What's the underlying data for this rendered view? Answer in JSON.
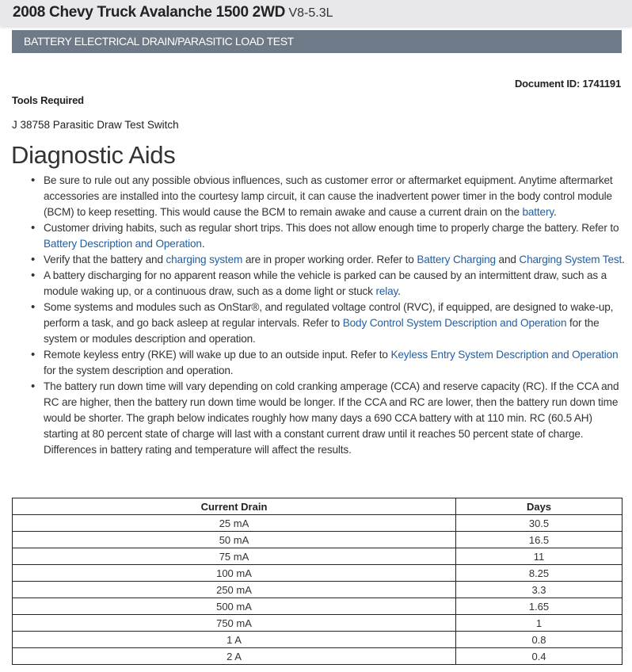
{
  "header": {
    "title": "2008 Chevy Truck Avalanche 1500 2WD",
    "engine": "V8-5.3L"
  },
  "section_title": "BATTERY ELECTRICAL DRAIN/PARASITIC LOAD TEST",
  "document_id": "Document ID: 1741191",
  "tools_heading": "Tools Required",
  "tool": "J 38758 Parasitic Draw Test Switch",
  "heading": "Diagnostic Aids",
  "bullets": [
    [
      {
        "text": "Be sure to rule out any possible obvious influences, such as customer error or aftermarket equipment. Anytime aftermarket accessories are installed into the courtesy lamp circuit, it can cause the inadvertent power timer in the body control module (BCM) to keep resetting. This would cause the BCM to remain awake and cause a current drain on the "
      },
      {
        "text": "battery",
        "link": true
      },
      {
        "text": "."
      }
    ],
    [
      {
        "text": "Customer driving habits, such as regular short trips. This does not allow enough time to properly charge the battery. Refer to "
      },
      {
        "text": "Battery Description and Operation",
        "link": true
      },
      {
        "text": "."
      }
    ],
    [
      {
        "text": "Verify that the battery and "
      },
      {
        "text": "charging system",
        "link": true
      },
      {
        "text": " are in proper working order. Refer to "
      },
      {
        "text": "Battery Charging",
        "link": true
      },
      {
        "text": " and "
      },
      {
        "text": "Charging System Test",
        "link": true
      },
      {
        "text": "."
      }
    ],
    [
      {
        "text": "A battery discharging for no apparent reason while the vehicle is parked can be caused by an intermittent draw, such as a module waking up, or a continuous draw, such as a dome light or stuck "
      },
      {
        "text": "relay",
        "link": true
      },
      {
        "text": "."
      }
    ],
    [
      {
        "text": "Some systems and modules such as OnStar®, and regulated voltage control (RVC), if equipped, are designed to wake-up, perform a task, and go back asleep at regular intervals. Refer to "
      },
      {
        "text": "Body Control System Description and Operation",
        "link": true
      },
      {
        "text": " for the system or modules description and operation."
      }
    ],
    [
      {
        "text": "Remote keyless entry (RKE) will wake up due to an outside input. Refer to "
      },
      {
        "text": "Keyless Entry System Description and Operation",
        "link": true
      },
      {
        "text": " for the system description and operation."
      }
    ],
    [
      {
        "text": "The battery run down time will vary depending on cold cranking amperage (CCA) and reserve capacity (RC). If the CCA and RC are higher, then the battery run down time would be longer. If the CCA and RC are lower, then the battery run down time would be shorter. The graph below indicates roughly how many days a 690 CCA battery with at 110 min. RC (60.5 AH) starting at 80 percent state of charge will last with a constant current draw until it reaches 50 percent state of charge. Differences in battery rating and temperature will affect the results."
      }
    ]
  ],
  "table": {
    "headers": [
      "Current Drain",
      "Days"
    ],
    "rows": [
      [
        "25 mA",
        "30.5"
      ],
      [
        "50 mA",
        "16.5"
      ],
      [
        "75 mA",
        "11"
      ],
      [
        "100 mA",
        "8.25"
      ],
      [
        "250 mA",
        "3.3"
      ],
      [
        "500 mA",
        "1.65"
      ],
      [
        "750 mA",
        "1"
      ],
      [
        "1 A",
        "0.8"
      ],
      [
        "2 A",
        "0.4"
      ]
    ]
  },
  "colors": {
    "section_bar": "#6e7a88",
    "link": "#1f5fa6",
    "header_bg": "#e8e8ea"
  }
}
